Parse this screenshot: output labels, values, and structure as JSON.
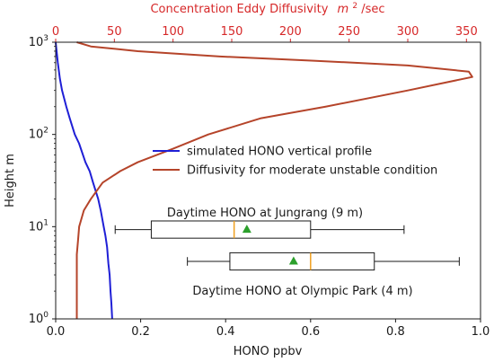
{
  "chart_data": {
    "type": "line",
    "x_axis": {
      "label": "HONO ppbv",
      "lim": [
        0.0,
        1.0
      ],
      "ticks": [
        0.0,
        0.2,
        0.4,
        0.6,
        0.8,
        1.0
      ],
      "tick_labels": [
        "0.0",
        "0.2",
        "0.4",
        "0.6",
        "0.8",
        "1.0"
      ]
    },
    "top_axis": {
      "label": "Concentration Eddy Diffusivity",
      "unit_base": "m",
      "unit_exp": "2",
      "unit_suffix": "/sec",
      "lim": [
        0,
        362
      ],
      "ticks": [
        0,
        50,
        100,
        150,
        200,
        250,
        300,
        350
      ],
      "tick_labels": [
        "0",
        "50",
        "100",
        "150",
        "200",
        "250",
        "300",
        "350"
      ],
      "color": "#d62728"
    },
    "y_axis": {
      "label": "Height  m",
      "scale": "log",
      "lim": [
        1,
        1000
      ],
      "ticks": [
        1,
        10,
        100,
        1000
      ],
      "tick_bases": [
        "10",
        "10",
        "10",
        "10"
      ],
      "tick_exps": [
        "0",
        "1",
        "2",
        "3"
      ]
    },
    "series": [
      {
        "name": "simulated HONO vertical profile",
        "color": "#1f1fd6",
        "axis": "bottom",
        "points": [
          [
            0.133,
            1
          ],
          [
            0.131,
            1.5
          ],
          [
            0.129,
            2
          ],
          [
            0.127,
            3
          ],
          [
            0.124,
            4
          ],
          [
            0.121,
            6
          ],
          [
            0.117,
            8
          ],
          [
            0.113,
            10
          ],
          [
            0.106,
            15
          ],
          [
            0.1,
            20
          ],
          [
            0.088,
            30
          ],
          [
            0.08,
            40
          ],
          [
            0.07,
            50
          ],
          [
            0.055,
            80
          ],
          [
            0.045,
            100
          ],
          [
            0.033,
            150
          ],
          [
            0.025,
            200
          ],
          [
            0.015,
            300
          ],
          [
            0.01,
            400
          ],
          [
            0.005,
            600
          ],
          [
            0.001,
            900
          ],
          [
            0.0,
            1000
          ]
        ]
      },
      {
        "name": "Diffusivity for moderate unstable condition",
        "color": "#b5442a",
        "axis": "top",
        "points": [
          [
            18,
            1
          ],
          [
            18,
            1.5
          ],
          [
            18,
            2
          ],
          [
            18,
            3
          ],
          [
            18,
            4
          ],
          [
            18,
            5
          ],
          [
            19,
            7
          ],
          [
            20,
            10
          ],
          [
            24,
            15
          ],
          [
            30,
            20
          ],
          [
            40,
            30
          ],
          [
            55,
            40
          ],
          [
            70,
            50
          ],
          [
            100,
            70
          ],
          [
            130,
            100
          ],
          [
            175,
            150
          ],
          [
            230,
            200
          ],
          [
            300,
            300
          ],
          [
            355,
            420
          ],
          [
            352,
            480
          ],
          [
            300,
            560
          ],
          [
            220,
            630
          ],
          [
            140,
            700
          ],
          [
            70,
            800
          ],
          [
            30,
            900
          ],
          [
            18,
            1000
          ]
        ]
      }
    ],
    "boxplots": [
      {
        "label": "Daytime HONO at Jungrang (9 m)",
        "height": 9.3,
        "whisker_low": 0.14,
        "q1": 0.225,
        "median": 0.42,
        "q3": 0.6,
        "whisker_high": 0.82,
        "mean": 0.45,
        "box_height_ratio": 1.24
      },
      {
        "label": "Daytime HONO at Olympic Park (4 m)",
        "height": 4.2,
        "whisker_low": 0.31,
        "q1": 0.41,
        "median": 0.6,
        "q3": 0.75,
        "whisker_high": 0.95,
        "mean": 0.56,
        "box_height_ratio": 1.24
      }
    ],
    "legend": {
      "placement": "center-right",
      "entries": [
        "simulated HONO vertical profile",
        "Diffusivity for moderate unstable condition"
      ]
    },
    "colors": {
      "median": "#f0a020",
      "mean_marker": "#2ca02c",
      "box": "#1a1a1a"
    },
    "grid": false
  }
}
